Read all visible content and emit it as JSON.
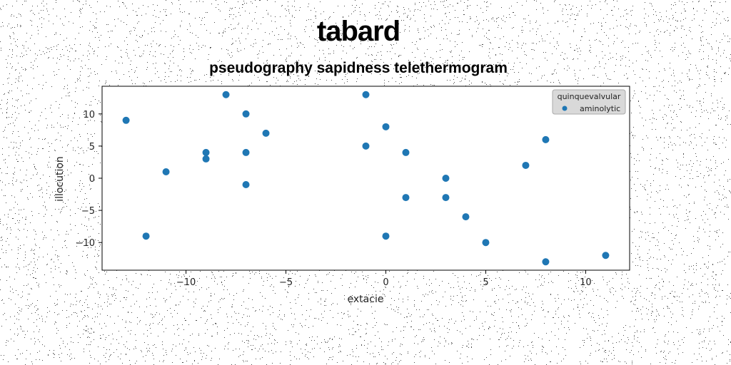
{
  "chart_data": {
    "type": "scatter",
    "title": "tabard",
    "subtitle": "pseudography sapidness telethermogram",
    "xlabel": "extacie",
    "ylabel": "illocution",
    "xlim": [
      -14.2,
      12.2
    ],
    "ylim": [
      -14.3,
      14.3
    ],
    "x_ticks": [
      -10,
      -5,
      0,
      5,
      10
    ],
    "y_ticks": [
      -10,
      -5,
      0,
      5,
      10
    ],
    "x_tick_labels": [
      "−10",
      "−5",
      "0",
      "5",
      "10"
    ],
    "y_tick_labels": [
      "−10",
      "−5",
      "0",
      "5",
      "10"
    ],
    "grid": false,
    "legend": {
      "title": "quinquevalvular",
      "placement": "top-right"
    },
    "series": [
      {
        "name": "aminolytic",
        "color": "#1f77b4",
        "points": [
          [
            -13,
            9
          ],
          [
            -12,
            -9
          ],
          [
            -11,
            1
          ],
          [
            -9,
            4
          ],
          [
            -9,
            3
          ],
          [
            -8,
            13
          ],
          [
            -7,
            10
          ],
          [
            -7,
            4
          ],
          [
            -7,
            -1
          ],
          [
            -6,
            7
          ],
          [
            -1,
            13
          ],
          [
            -1,
            5
          ],
          [
            0,
            8
          ],
          [
            0,
            -9
          ],
          [
            1,
            4
          ],
          [
            1,
            -3
          ],
          [
            3,
            0
          ],
          [
            3,
            -3
          ],
          [
            4,
            -6
          ],
          [
            5,
            -10
          ],
          [
            7,
            2
          ],
          [
            8,
            6
          ],
          [
            8,
            -13
          ],
          [
            11,
            -12
          ]
        ]
      }
    ]
  },
  "colors": {
    "marker": "#1f77b4",
    "axes": "#000000",
    "background": "#ffffff"
  }
}
